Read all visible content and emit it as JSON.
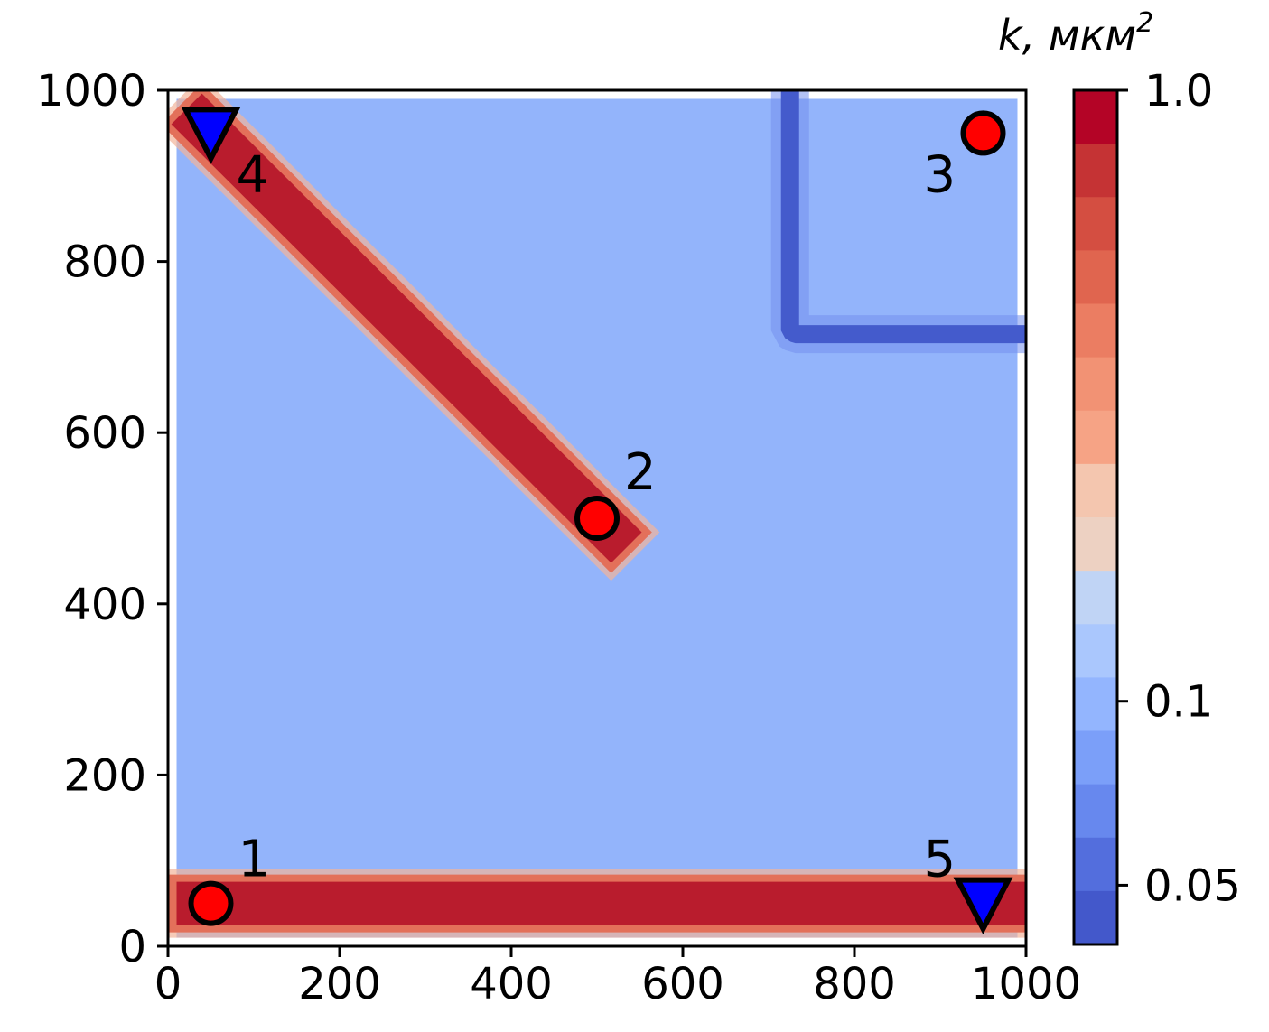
{
  "chart_data": {
    "type": "heatmap",
    "title": "",
    "xlabel": "",
    "ylabel": "",
    "xlim": [
      0,
      1000
    ],
    "ylim": [
      0,
      1000
    ],
    "x_ticks": [
      "0",
      "200",
      "400",
      "600",
      "800",
      "1000"
    ],
    "y_ticks": [
      "0",
      "200",
      "400",
      "600",
      "800",
      "1000"
    ],
    "grid": false,
    "background_value": 0.1,
    "colormap": "coolwarm",
    "colorbar": {
      "title_main": "k, мкм",
      "title_sup": "2",
      "scale": "log",
      "range": [
        0.04,
        1.0
      ],
      "tick_labels": [
        "1.0",
        "0.1",
        "0.05"
      ],
      "tick_values": [
        1.0,
        0.1,
        0.05
      ],
      "levels": [
        "#b40426",
        "#c53334",
        "#d44e41",
        "#e0654f",
        "#eb7d62",
        "#f29274",
        "#f6a385",
        "#f4c6af",
        "#edd1c2",
        "#c0d4f5",
        "#aac7fd",
        "#93b5fe",
        "#7b9ff9",
        "#6788ee",
        "#536edd",
        "#4358cb"
      ]
    },
    "fractures": [
      {
        "name": "fracture-bottom",
        "from": [
          50,
          50
        ],
        "to": [
          950,
          50
        ],
        "value": 1.0
      },
      {
        "name": "fracture-diagonal",
        "from": [
          50,
          950
        ],
        "to": [
          500,
          500
        ],
        "value": 1.0
      }
    ],
    "barrier": {
      "name": "low-permeability-barrier",
      "vertical_x": 725,
      "horizontal_y": 715,
      "y_top": 1000,
      "x_right": 1000,
      "value": 0.04
    },
    "wells": [
      {
        "label": "1",
        "x": 50,
        "y": 50,
        "type": "injector",
        "color": "#ff0000"
      },
      {
        "label": "2",
        "x": 500,
        "y": 500,
        "type": "injector",
        "color": "#ff0000"
      },
      {
        "label": "3",
        "x": 950,
        "y": 950,
        "type": "injector",
        "color": "#ff0000"
      },
      {
        "label": "4",
        "x": 50,
        "y": 950,
        "type": "producer",
        "color": "#0000ff"
      },
      {
        "label": "5",
        "x": 950,
        "y": 50,
        "type": "producer",
        "color": "#0000ff"
      }
    ],
    "colors": {
      "background": "#93b4fb",
      "fracture": "#b91c2d",
      "fracture_edge": "#f2b49a",
      "barrier": "#445bcc",
      "barrier_edge": "#7490ee"
    }
  }
}
